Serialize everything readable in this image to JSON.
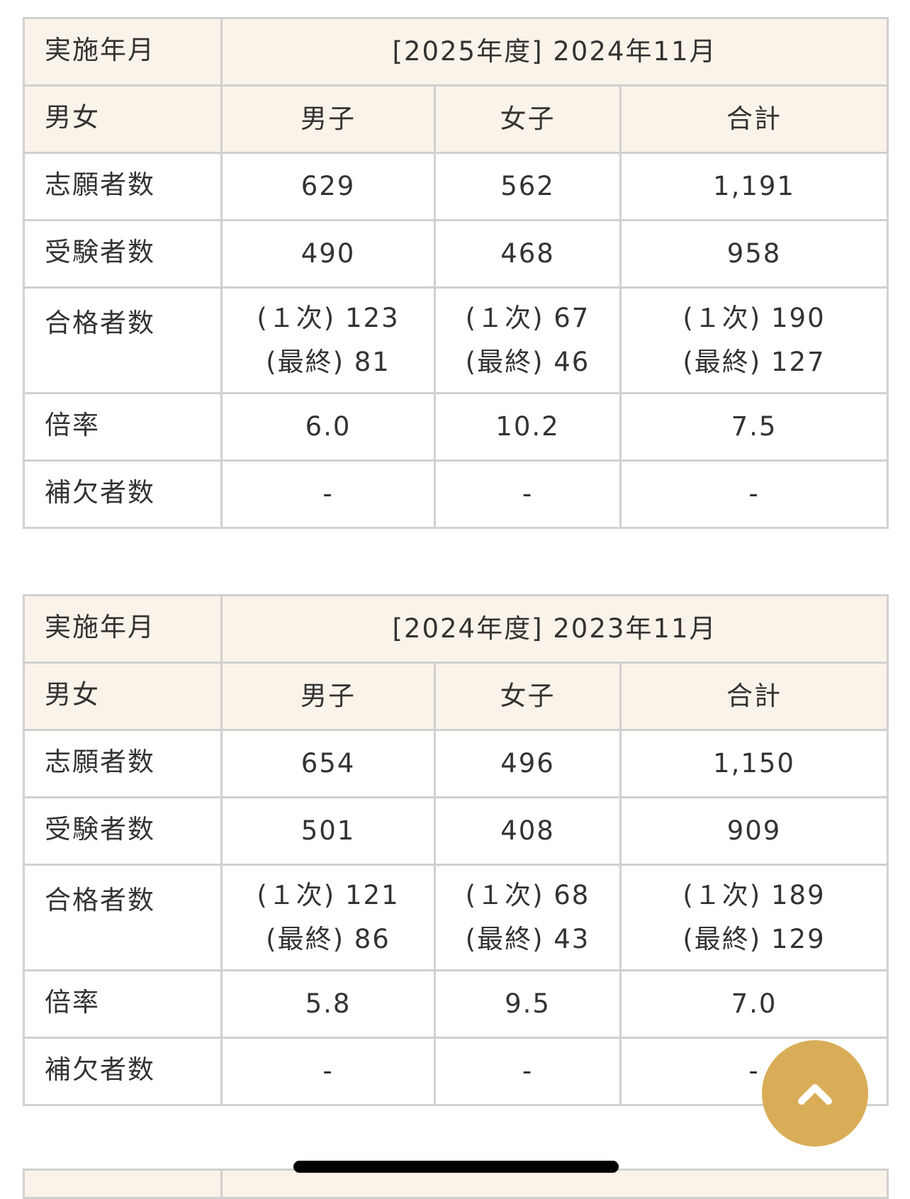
{
  "tables": [
    {
      "date_label": "実施年月",
      "date_value": "[2025年度] 2024年11月",
      "gender_label": "男女",
      "cols": [
        "男子",
        "女子",
        "合計"
      ],
      "rows": [
        {
          "label": "志願者数",
          "values": [
            "629",
            "562",
            "1,191"
          ]
        },
        {
          "label": "受験者数",
          "values": [
            "490",
            "468",
            "958"
          ]
        },
        {
          "label": "合格者数",
          "first": [
            "(１次) 123",
            "(１次) 67",
            "(１次) 190"
          ],
          "final": [
            "(最終) 81",
            "(最終) 46",
            "(最終) 127"
          ]
        },
        {
          "label": "倍率",
          "values": [
            "6.0",
            "10.2",
            "7.5"
          ]
        },
        {
          "label": "補欠者数",
          "values": [
            "-",
            "-",
            "-"
          ]
        }
      ]
    },
    {
      "date_label": "実施年月",
      "date_value": "[2024年度] 2023年11月",
      "gender_label": "男女",
      "cols": [
        "男子",
        "女子",
        "合計"
      ],
      "rows": [
        {
          "label": "志願者数",
          "values": [
            "654",
            "496",
            "1,150"
          ]
        },
        {
          "label": "受験者数",
          "values": [
            "501",
            "408",
            "909"
          ]
        },
        {
          "label": "合格者数",
          "first": [
            "(１次) 121",
            "(１次) 68",
            "(１次) 189"
          ],
          "final": [
            "(最終) 86",
            "(最終) 43",
            "(最終) 129"
          ]
        },
        {
          "label": "倍率",
          "values": [
            "5.8",
            "9.5",
            "7.0"
          ]
        },
        {
          "label": "補欠者数",
          "values": [
            "-",
            "-",
            "-"
          ]
        }
      ]
    }
  ],
  "scroll_top_button": {
    "icon": "chevron-up-icon",
    "color": "#d9ad58"
  }
}
